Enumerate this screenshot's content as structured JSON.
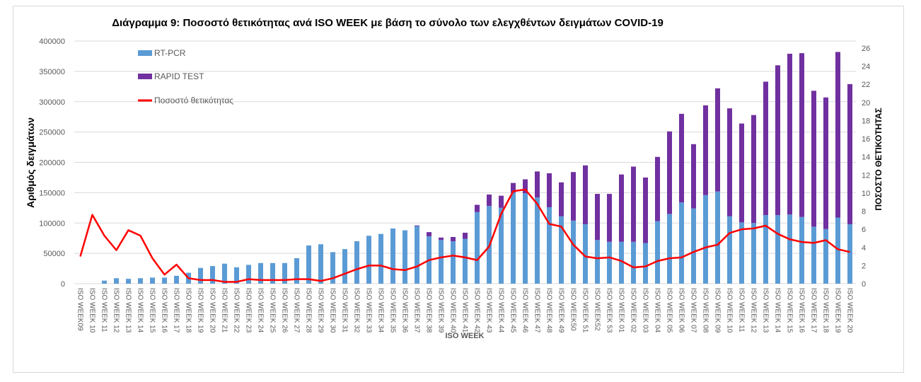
{
  "chart_data": {
    "type": "bar",
    "stacked": true,
    "title": "Διάγραμμα 9: Ποσοστό θετικότητας ανά ISO WEEK με βάση το σύνολο των ελεγχθέντων δειγμάτων COVID-19",
    "xlabel": "ISO WEEK",
    "ylabel": "Αριθμός δειγμάτων",
    "y2label": "ΠΟΣΟΣΤΟ ΘΕΤΙΚΟΤΗΤΑΣ",
    "ylim": [
      0,
      400000
    ],
    "yticks": [
      0,
      50000,
      100000,
      150000,
      200000,
      250000,
      300000,
      350000,
      400000
    ],
    "y2lim": [
      0,
      26
    ],
    "y2ticks": [
      0,
      2,
      4,
      6,
      8,
      10,
      12,
      14,
      16,
      18,
      20,
      22,
      24,
      26
    ],
    "grid": true,
    "legend_position": "top-left",
    "colors": {
      "pcr": "#5b9bd5",
      "rapid": "#7030a0",
      "rate": "#ff0000"
    },
    "categories": [
      "ISO WEEK09",
      "ISO WEEK 10",
      "ISO WEEK 11",
      "ISO WEEK 12",
      "ISO WEEK 13",
      "ISO WEEK 14",
      "ISO WEEK 15",
      "ISO WEEK 16",
      "ISO WEEK 17",
      "ISO WEEK 18",
      "ISO WEEK 19",
      "ISO WEEK 20",
      "ISO WEEK 21",
      "ISO WEEK 22",
      "ISO WEEK 23",
      "ISO WEEK 24",
      "ISO WEEK 25",
      "ISO WEEK 26",
      "ISO WEEK 27",
      "ISO WEEK 28",
      "ISO WEEK 29",
      "ISO WEEK 30",
      "ISO WEEK 31",
      "ISO WEEK 32",
      "ISO WEEK 33",
      "ISO WEEK 34",
      "ISO WEEK 35",
      "ISO WEEK 36",
      "ISO WEEK 37",
      "ISO WEEK 38",
      "ISO WEEK 39",
      "ISO WEEK 40",
      "ISO WEEK 41",
      "ISO WEEK 42",
      "ISO WEEK 43",
      "ISO WEEK 44",
      "ISO WEEK 45",
      "ISO WEEK 46",
      "ISO WEEK 47",
      "ISO WEEK 48",
      "ISO WEEK 49",
      "ISO WEEK50",
      "ISO WEEK 51",
      "ISO WEEK52",
      "ISO WEEK 53",
      "ISO WEEK 01",
      "ISO WEEK 02",
      "ISO WEEK 03",
      "ISO WEEK 04",
      "ISO WEEK 05",
      "ISO WEEK 06",
      "ISO WEEK 07",
      "ISO WEEK 08",
      "ISO WEEK 09",
      "ISO WEEK 10",
      "ISO WEEK 11",
      "ISO WEEK 12",
      "ISO WEEK 13",
      "ISO WEEK 14",
      "ISO WEEK 15",
      "ISO WEEK 16",
      "ISO WEEK 17",
      "ISO WEEK 18",
      "ISO WEEK 19",
      "ISO WEEK 20"
    ],
    "series": [
      {
        "name": "RT-PCR",
        "type": "bar",
        "axis": "left",
        "values": [
          0,
          0,
          5000,
          9000,
          8000,
          9000,
          10000,
          10000,
          13000,
          18000,
          26000,
          29000,
          33000,
          27000,
          31000,
          34000,
          34000,
          34000,
          42000,
          63000,
          65000,
          52000,
          57000,
          70000,
          79000,
          82000,
          91000,
          88000,
          95000,
          78000,
          72000,
          70000,
          74000,
          118000,
          128000,
          125000,
          150000,
          149000,
          142000,
          126000,
          111000,
          104000,
          98000,
          72000,
          69000,
          69000,
          69000,
          67000,
          103000,
          115000,
          134000,
          124000,
          146000,
          152000,
          111000,
          101000,
          100000,
          113000,
          113000,
          114000,
          110000,
          94000,
          90000,
          109000,
          98000
        ]
      },
      {
        "name": "RAPID TEST",
        "type": "bar",
        "axis": "left",
        "values": [
          0,
          0,
          0,
          0,
          0,
          0,
          0,
          0,
          0,
          0,
          0,
          0,
          0,
          0,
          0,
          0,
          0,
          0,
          0,
          0,
          0,
          0,
          0,
          0,
          0,
          0,
          0,
          0,
          1000,
          7000,
          4000,
          7000,
          10000,
          12000,
          19000,
          20000,
          16000,
          23000,
          43000,
          56000,
          56000,
          80000,
          97000,
          76000,
          79000,
          111000,
          124000,
          108000,
          106000,
          136000,
          146000,
          106000,
          148000,
          170000,
          178000,
          163000,
          178000,
          220000,
          247000,
          265000,
          270000,
          224000,
          217000,
          273000,
          231000
        ]
      },
      {
        "name": "Ποσοστό θετικότητας",
        "type": "line",
        "axis": "right",
        "values": [
          3.0,
          7.6,
          5.3,
          3.7,
          5.9,
          5.3,
          2.8,
          1.0,
          2.1,
          0.6,
          0.4,
          0.4,
          0.2,
          0.2,
          0.5,
          0.4,
          0.4,
          0.4,
          0.5,
          0.5,
          0.3,
          0.6,
          1.1,
          1.6,
          2.0,
          2.0,
          1.6,
          1.5,
          1.9,
          2.6,
          2.9,
          3.1,
          2.9,
          2.6,
          4.1,
          7.7,
          10.2,
          10.4,
          8.8,
          6.6,
          6.3,
          4.3,
          3.0,
          2.8,
          2.9,
          2.5,
          1.8,
          1.9,
          2.5,
          2.8,
          2.9,
          3.5,
          4.0,
          4.3,
          5.6,
          6.0,
          6.1,
          6.4,
          5.5,
          4.9,
          4.6,
          4.5,
          4.8,
          3.8,
          3.5
        ]
      }
    ]
  }
}
